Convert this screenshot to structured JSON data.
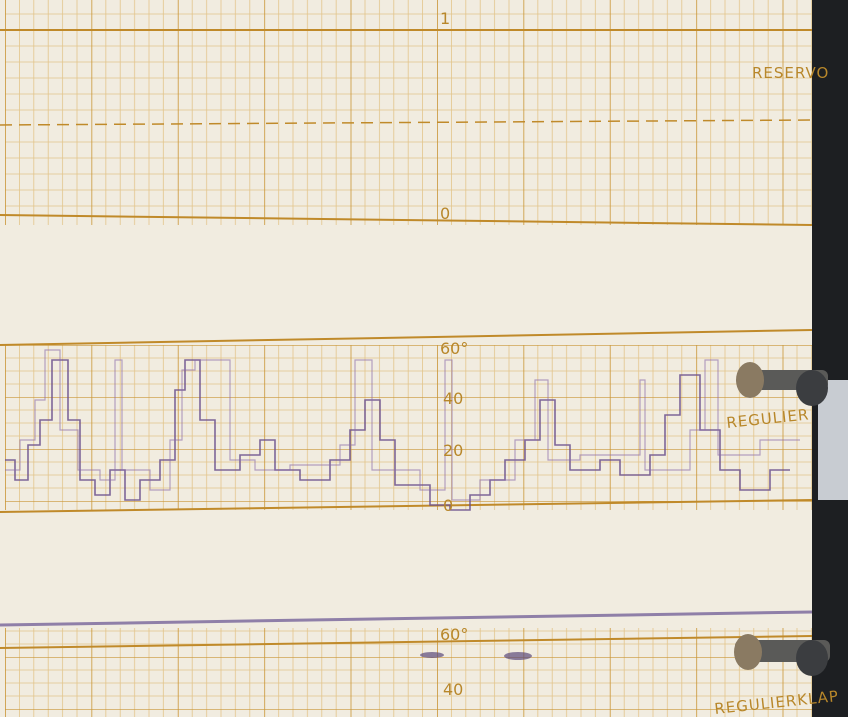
{
  "photo": {
    "top_band": {
      "scale_top": "1",
      "scale_bottom": "0",
      "side_label": "RESERVO"
    },
    "middle_band": {
      "scale": [
        "60°",
        "40",
        "20",
        "0"
      ],
      "side_label": "REGULIER"
    },
    "bottom_band": {
      "scale": [
        "60°",
        "40"
      ],
      "side_label": "REGULIERKLAP"
    }
  }
}
